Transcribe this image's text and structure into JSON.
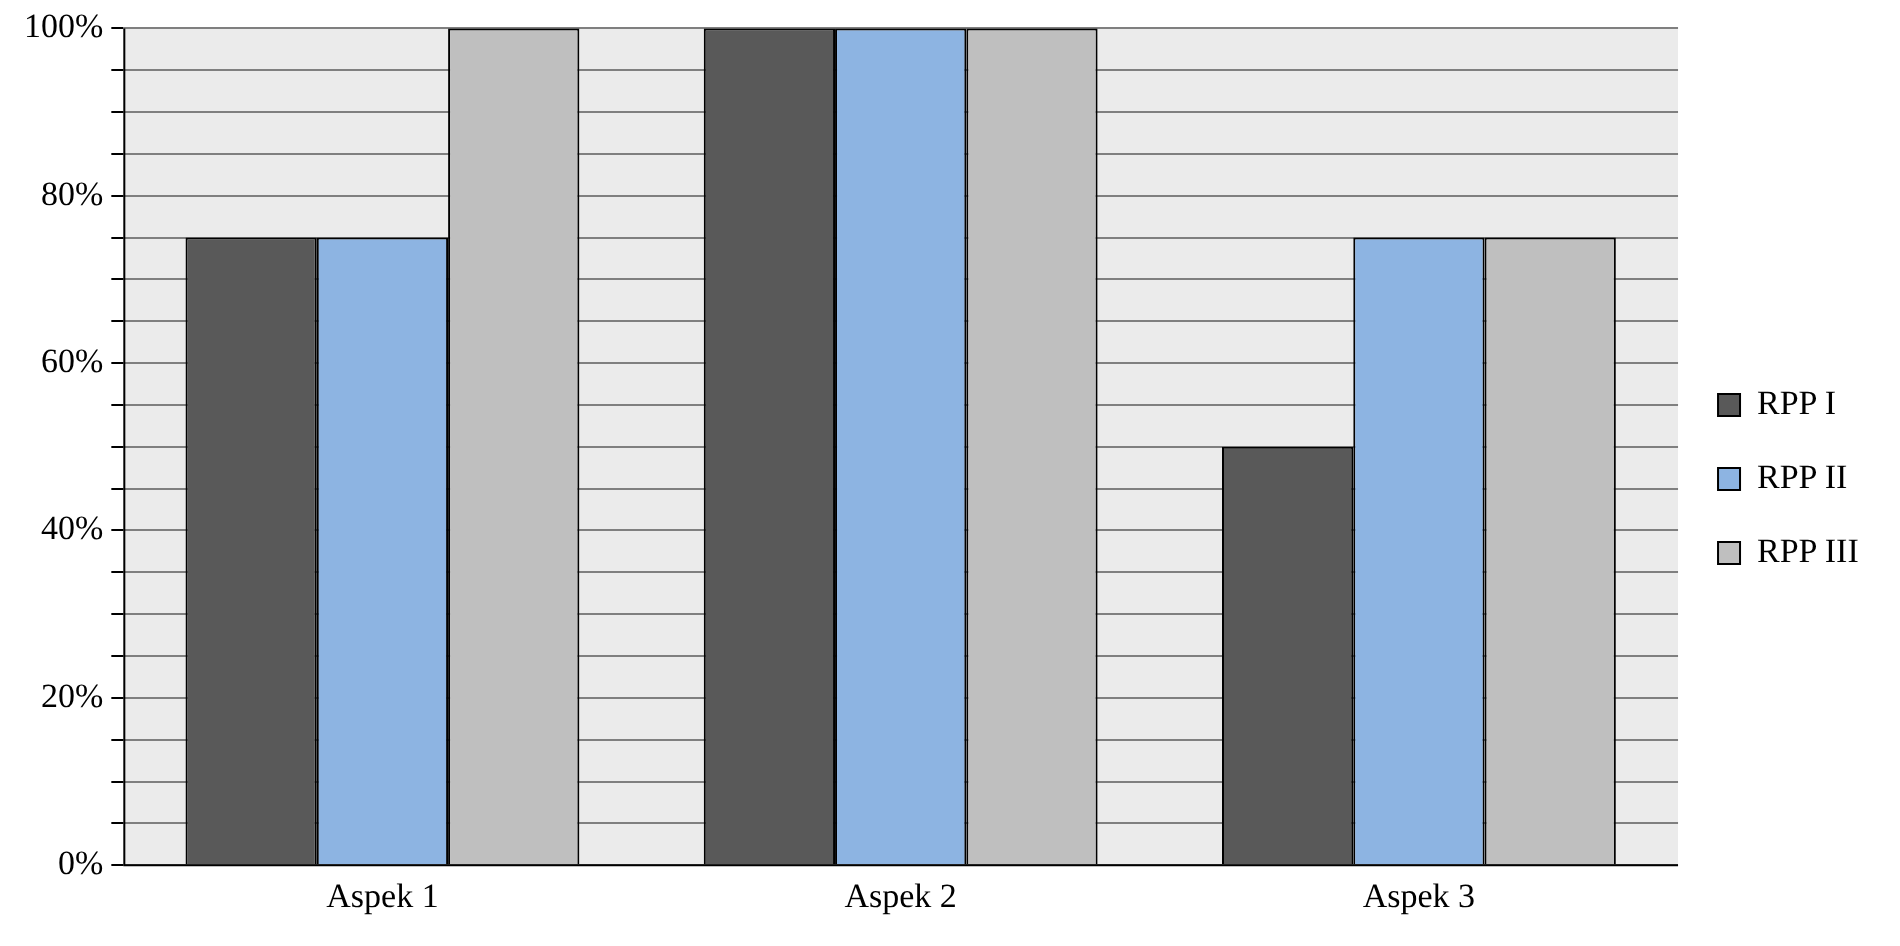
{
  "chart_data": {
    "type": "bar",
    "categories": [
      "Aspek 1",
      "Aspek 2",
      "Aspek 3"
    ],
    "series": [
      {
        "name": "RPP I",
        "color": "#595959",
        "values": [
          75,
          100,
          50
        ]
      },
      {
        "name": "RPP II",
        "color": "#8db4e2",
        "values": [
          75,
          100,
          75
        ]
      },
      {
        "name": "RPP III",
        "color": "#bfbfbf",
        "values": [
          100,
          100,
          75
        ]
      }
    ],
    "ylim": [
      0,
      100
    ],
    "yticks": [
      {
        "value": 0,
        "label": "0%"
      },
      {
        "value": 5,
        "label": null
      },
      {
        "value": 10,
        "label": null
      },
      {
        "value": 15,
        "label": null
      },
      {
        "value": 20,
        "label": "20%"
      },
      {
        "value": 25,
        "label": null
      },
      {
        "value": 30,
        "label": null
      },
      {
        "value": 35,
        "label": null
      },
      {
        "value": 40,
        "label": "40%"
      },
      {
        "value": 45,
        "label": null
      },
      {
        "value": 50,
        "label": null
      },
      {
        "value": 55,
        "label": null
      },
      {
        "value": 60,
        "label": "60%"
      },
      {
        "value": 65,
        "label": null
      },
      {
        "value": 70,
        "label": null
      },
      {
        "value": 75,
        "label": null
      },
      {
        "value": 80,
        "label": "80%"
      },
      {
        "value": 85,
        "label": null
      },
      {
        "value": 90,
        "label": null
      },
      {
        "value": 95,
        "label": null
      },
      {
        "value": 100,
        "label": "100%"
      }
    ],
    "grid": "y",
    "legend": "right"
  }
}
